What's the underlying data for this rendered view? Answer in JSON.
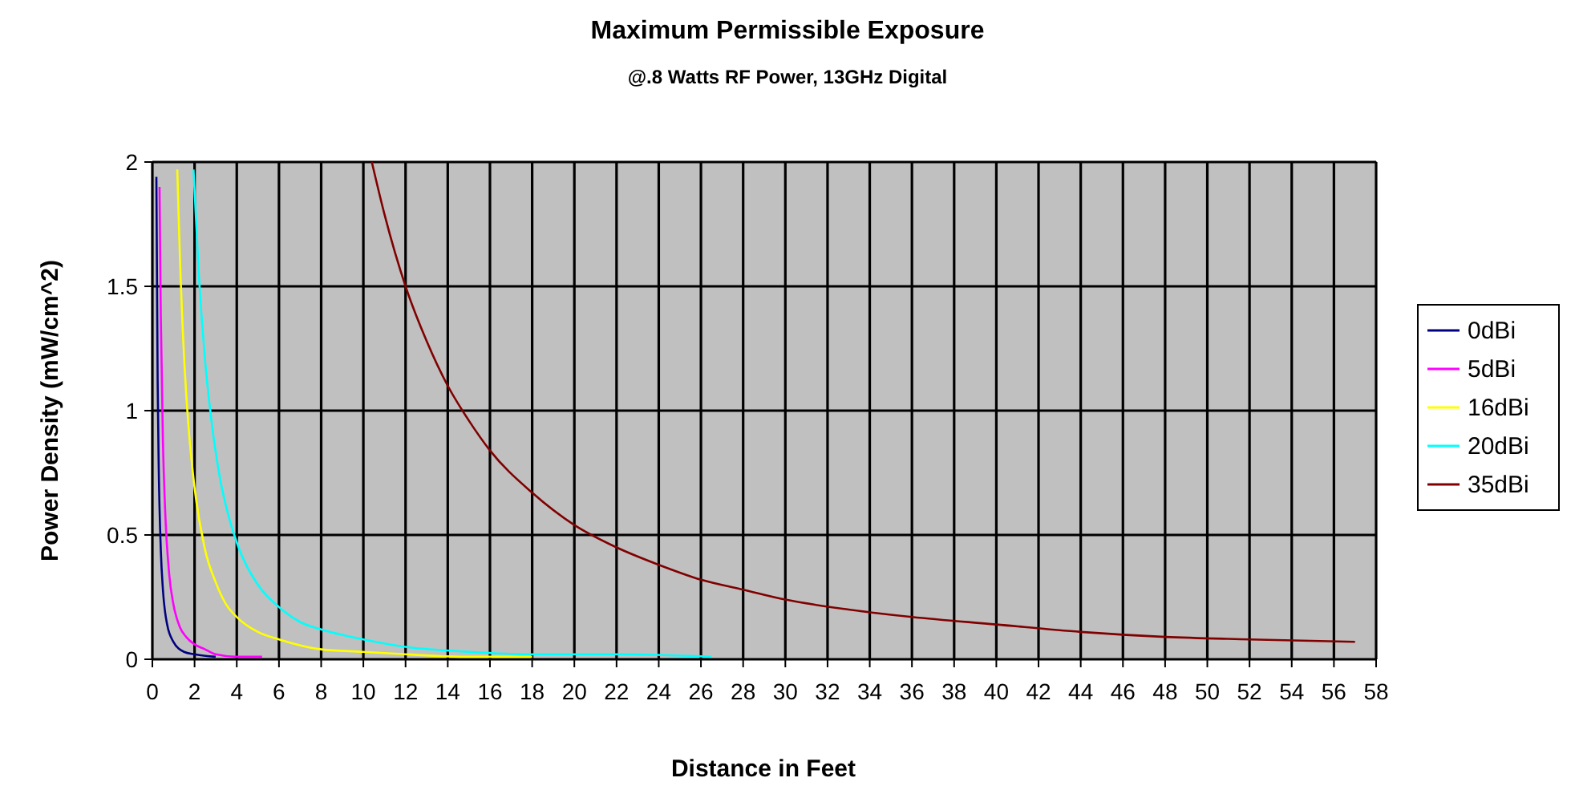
{
  "chart_data": {
    "type": "line",
    "title": "Maximum Permissible Exposure",
    "subtitle": "@.8 Watts RF Power, 13GHz Digital",
    "xlabel": "Distance in Feet",
    "ylabel": "Power Density (mW/cm^2)",
    "xlim": [
      0,
      58
    ],
    "xticks": [
      0,
      2,
      4,
      6,
      8,
      10,
      12,
      14,
      16,
      18,
      20,
      22,
      24,
      26,
      28,
      30,
      32,
      34,
      36,
      38,
      40,
      42,
      44,
      46,
      48,
      50,
      52,
      54,
      56,
      58
    ],
    "ylim": [
      0,
      2
    ],
    "yticks": [
      0,
      {
        "value": 0.5,
        "label": "0.5"
      },
      1,
      {
        "value": 1.5,
        "label": "1.5"
      },
      2
    ],
    "grid": true,
    "legend": "right",
    "marker": "none",
    "line_style": "solid",
    "series": [
      {
        "name": "0dBi",
        "color": "#000080",
        "x": [
          0.19,
          0.25,
          0.3,
          0.4,
          0.5,
          0.7,
          1,
          1.5,
          2,
          3
        ],
        "values": [
          1.94,
          1.12,
          0.78,
          0.44,
          0.28,
          0.14,
          0.07,
          0.03,
          0.02,
          0.01
        ]
      },
      {
        "name": "5dBi",
        "color": "#ff00ff",
        "x": [
          0.34,
          0.4,
          0.5,
          0.6,
          0.8,
          1,
          1.3,
          1.6,
          2,
          2.5,
          3,
          4,
          5.2
        ],
        "values": [
          1.9,
          1.38,
          0.88,
          0.61,
          0.34,
          0.22,
          0.13,
          0.09,
          0.06,
          0.04,
          0.02,
          0.01,
          0.01
        ]
      },
      {
        "name": "16dBi",
        "color": "#ffff00",
        "x": [
          1.18,
          1.3,
          1.5,
          1.7,
          2,
          2.5,
          3,
          3.5,
          4,
          5,
          6,
          8,
          10,
          12,
          15,
          18
        ],
        "values": [
          1.97,
          1.63,
          1.22,
          0.95,
          0.69,
          0.44,
          0.31,
          0.22,
          0.17,
          0.11,
          0.08,
          0.04,
          0.03,
          0.02,
          0.01,
          0.01
        ]
      },
      {
        "name": "20dBi",
        "color": "#00ffff",
        "x": [
          1.95,
          2.2,
          2.5,
          2.8,
          3.2,
          3.6,
          4,
          5,
          6,
          7,
          8,
          10,
          12,
          15,
          18,
          22,
          26.5
        ],
        "values": [
          1.97,
          1.55,
          1.2,
          0.96,
          0.73,
          0.58,
          0.47,
          0.3,
          0.21,
          0.15,
          0.12,
          0.08,
          0.05,
          0.03,
          0.02,
          0.02,
          0.01
        ]
      },
      {
        "name": "35dBi",
        "color": "#800000",
        "x": [
          10.4,
          11,
          12,
          13,
          14,
          15,
          16,
          18,
          20,
          22,
          24,
          26,
          28,
          30,
          33,
          36,
          40,
          44,
          48,
          52,
          57
        ],
        "values": [
          2.0,
          1.79,
          1.5,
          1.28,
          1.1,
          0.96,
          0.84,
          0.67,
          0.54,
          0.45,
          0.38,
          0.32,
          0.28,
          0.24,
          0.2,
          0.17,
          0.14,
          0.11,
          0.09,
          0.08,
          0.07
        ]
      }
    ]
  }
}
